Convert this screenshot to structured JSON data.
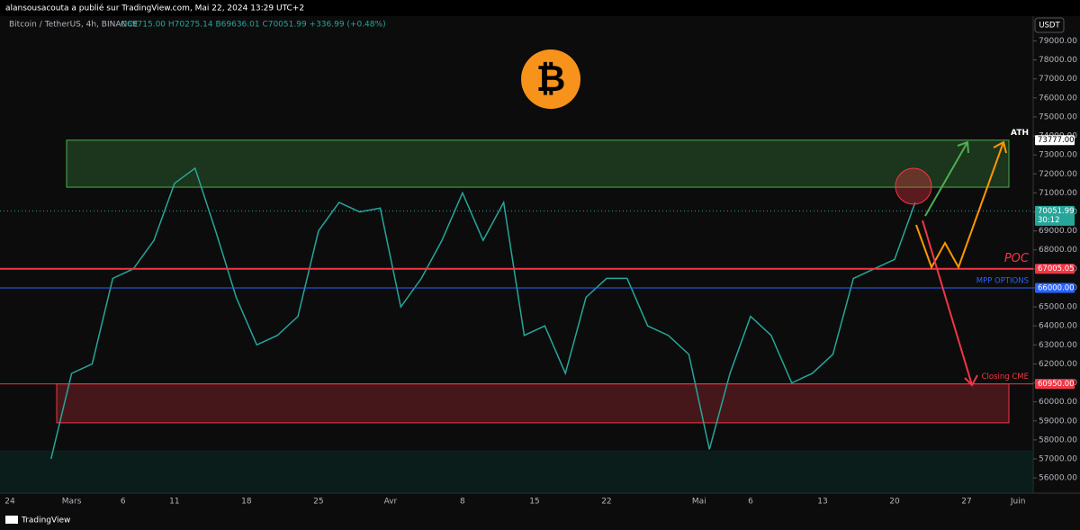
{
  "header": {
    "published": "alansousacouta a publié sur TradingView.com, Mai 22, 2024 13:29 UTC+2",
    "brand": "TradingView"
  },
  "chart_data": {
    "type": "line",
    "symbol": "Bitcoin / TetherUS, 4h, BINANCE",
    "ohlc": "O69715.00 H70275.14 B69636.01 C70051.99 +336.99 (+0.48%)",
    "currency": "USDT",
    "xticks": [
      "24",
      "Mars",
      "6",
      "11",
      "18",
      "25",
      "Avr",
      "8",
      "15",
      "22",
      "Mai",
      "6",
      "13",
      "20",
      "27",
      "Juin"
    ],
    "series": [
      {
        "color": "#26a69a",
        "values": [
          57000,
          61500,
          62000,
          66500,
          67000,
          68500,
          71500,
          72300,
          69000,
          65500,
          63000,
          63500,
          64500,
          69000,
          70500,
          70000,
          70200,
          65000,
          66500,
          68500,
          71000,
          68500,
          70500,
          63500,
          64000,
          61500,
          65500,
          66500,
          66500,
          64000,
          63500,
          62500,
          57500,
          61500,
          64500,
          63500,
          61000,
          61500,
          62500,
          66500,
          67000,
          67500,
          70500
        ]
      }
    ],
    "ylim": [
      55200,
      80300
    ],
    "yticks": [
      {
        "value": 56000,
        "label": "56000.00"
      },
      {
        "value": 57000,
        "label": "57000.00"
      },
      {
        "value": 58000,
        "label": "58000.00"
      },
      {
        "value": 59000,
        "label": "59000.00"
      },
      {
        "value": 60000,
        "label": "60000.00"
      },
      {
        "value": 61000,
        "label": "61000.00"
      },
      {
        "value": 62000,
        "label": "62000.00"
      },
      {
        "value": 63000,
        "label": "63000.00"
      },
      {
        "value": 64000,
        "label": "64000.00"
      },
      {
        "value": 65000,
        "label": "65000.00"
      },
      {
        "value": 66000,
        "label": "66000.00"
      },
      {
        "value": 67000,
        "label": "67000.00"
      },
      {
        "value": 68000,
        "label": "68000.00"
      },
      {
        "value": 69000,
        "label": "69000.00"
      },
      {
        "value": 70000,
        "label": "70000.00"
      },
      {
        "value": 71000,
        "label": "71000.00"
      },
      {
        "value": 72000,
        "label": "72000.00"
      },
      {
        "value": 73000,
        "label": "73000.00"
      },
      {
        "value": 74000,
        "label": "74000.00"
      },
      {
        "value": 75000,
        "label": "75000.00"
      },
      {
        "value": 76000,
        "label": "76000.00"
      },
      {
        "value": 77000,
        "label": "77000.00"
      },
      {
        "value": 78000,
        "label": "78000.00"
      },
      {
        "value": 79000,
        "label": "79000.00"
      }
    ],
    "levels": [
      {
        "name": "ATH",
        "value": 73777,
        "label": "73777.00",
        "color": "#ffffff"
      },
      {
        "value": 70051.99,
        "label": "70051.99",
        "countdown": "30:12",
        "color": "#26a69a"
      },
      {
        "name": "POC",
        "value": 67005.05,
        "label": "67005.05",
        "color": "#f23645"
      },
      {
        "name": "MPP OPTIONS",
        "value": 66000,
        "label": "66000.00",
        "color": "#2962ff"
      },
      {
        "name": "Closing CME",
        "value": 60950,
        "label": "60950.00",
        "color": "#f23645"
      }
    ],
    "zones": [
      {
        "from": 71300,
        "to": 73777,
        "color": "#4caf50"
      },
      {
        "from": 58900,
        "to": 60950,
        "color": "#f23645"
      },
      {
        "from": 55200,
        "to": 57450,
        "color": "#0b2a26"
      }
    ]
  }
}
